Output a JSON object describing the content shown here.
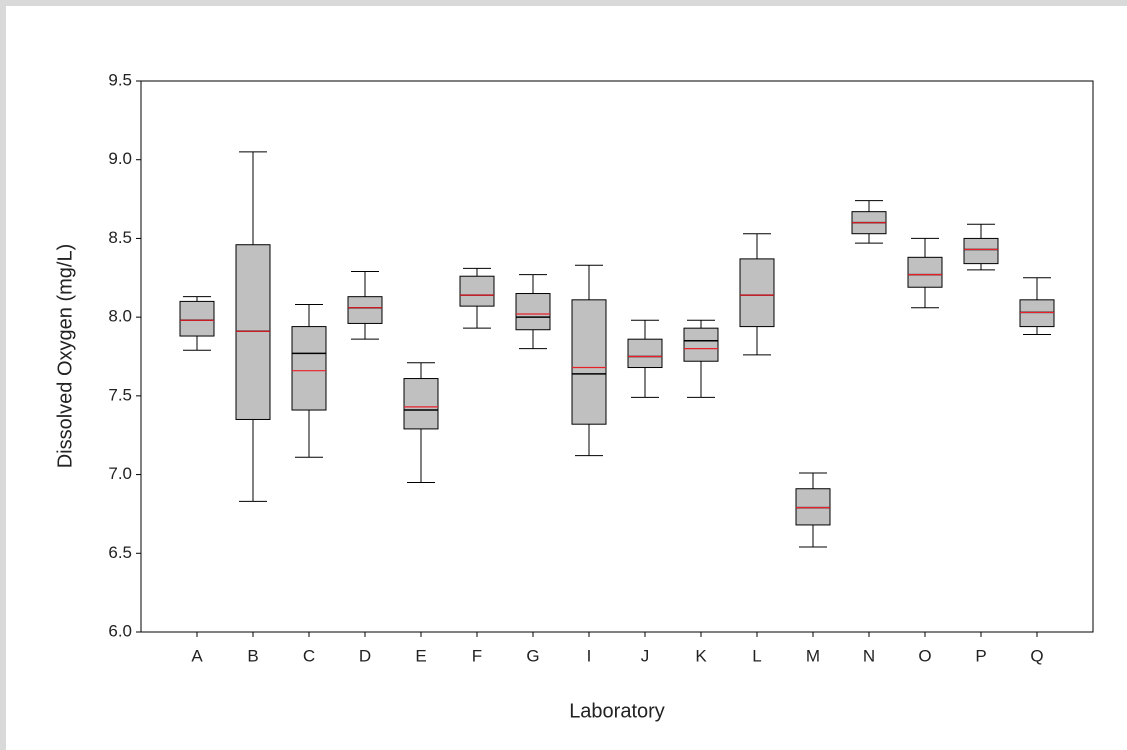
{
  "chart_data": {
    "type": "box",
    "x_label": "Laboratory",
    "y_label": "Dissolved Oxygen (mg/L)",
    "categories": [
      "A",
      "B",
      "C",
      "D",
      "E",
      "F",
      "G",
      "I",
      "J",
      "K",
      "L",
      "M",
      "N",
      "O",
      "P",
      "Q"
    ],
    "min": [
      7.79,
      6.83,
      7.11,
      7.86,
      6.95,
      7.93,
      7.8,
      7.12,
      7.49,
      7.49,
      7.76,
      6.54,
      8.47,
      8.06,
      8.3,
      7.89
    ],
    "q1": [
      7.88,
      7.35,
      7.41,
      7.96,
      7.29,
      8.07,
      7.92,
      7.32,
      7.68,
      7.72,
      7.94,
      6.68,
      8.53,
      8.19,
      8.34,
      7.94
    ],
    "median": [
      7.98,
      7.91,
      7.77,
      8.06,
      7.41,
      8.14,
      8.0,
      7.64,
      7.75,
      7.85,
      8.14,
      6.79,
      8.6,
      8.27,
      8.43,
      8.03
    ],
    "mean": [
      7.98,
      7.91,
      7.66,
      8.06,
      7.43,
      8.14,
      8.02,
      7.68,
      7.75,
      7.8,
      8.14,
      6.79,
      8.6,
      8.27,
      8.43,
      8.03
    ],
    "q3": [
      8.1,
      8.46,
      7.94,
      8.13,
      7.61,
      8.26,
      8.15,
      8.11,
      7.86,
      7.93,
      8.37,
      6.91,
      8.67,
      8.38,
      8.5,
      8.11
    ],
    "max": [
      8.13,
      9.05,
      8.08,
      8.29,
      7.71,
      8.31,
      8.27,
      8.33,
      7.98,
      7.98,
      8.53,
      7.01,
      8.74,
      8.5,
      8.59,
      8.25
    ],
    "box_color": "#c0c0c0",
    "median_color": "#000000",
    "mean_color": "#e8202a",
    "ylim": [
      6.0,
      9.5
    ],
    "yticks": [
      {
        "value": 6,
        "label": "6.0"
      },
      6.5,
      {
        "value": 7,
        "label": "7.0"
      },
      7.5,
      {
        "value": 8,
        "label": "8.0"
      },
      8.5,
      {
        "value": 9,
        "label": "9.0"
      },
      9.5
    ]
  }
}
